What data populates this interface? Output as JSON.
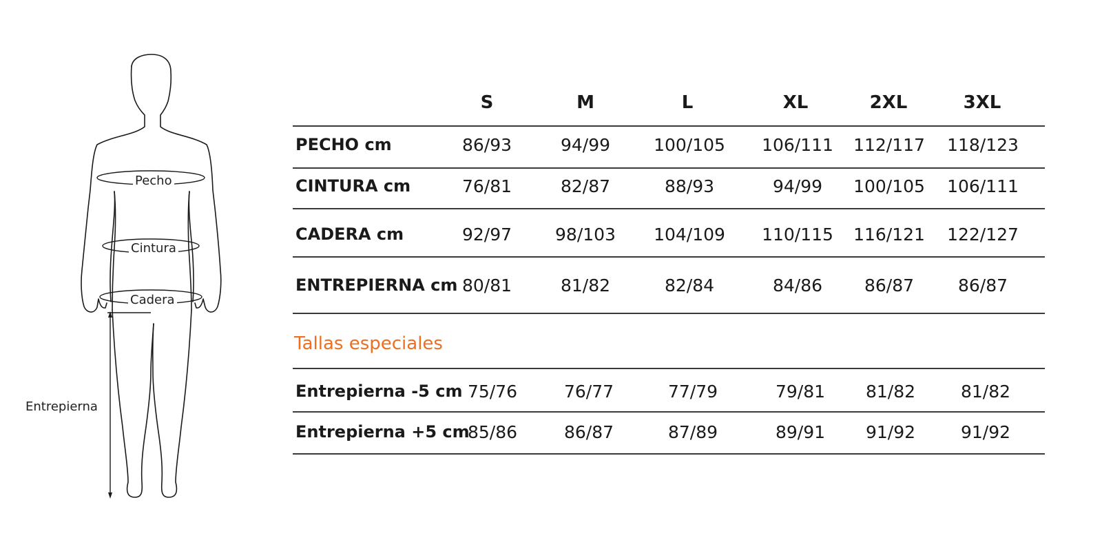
{
  "figure": {
    "labels": {
      "chest": "Pecho",
      "waist": "Cintura",
      "hip": "Cadera",
      "inseam": "Entrepierna"
    }
  },
  "table": {
    "sizes": [
      "S",
      "M",
      "L",
      "XL",
      "2XL",
      "3XL"
    ],
    "rows": [
      {
        "label": "PECHO cm",
        "values": [
          "86/93",
          "94/99",
          "100/105",
          "106/111",
          "112/117",
          "118/123"
        ]
      },
      {
        "label": "CINTURA cm",
        "values": [
          "76/81",
          "82/87",
          "88/93",
          "94/99",
          "100/105",
          "106/111"
        ]
      },
      {
        "label": "CADERA cm",
        "values": [
          "92/97",
          "98/103",
          "104/109",
          "110/115",
          "116/121",
          "122/127"
        ]
      },
      {
        "label": "ENTREPIERNA  cm",
        "values": [
          "80/81",
          "81/82",
          "82/84",
          "84/86",
          "86/87",
          "86/87"
        ]
      }
    ],
    "special_title": "Tallas especiales",
    "special_rows": [
      {
        "label": "Entrepierna -5 cm",
        "values": [
          "75/76",
          "76/77",
          "77/79",
          "79/81",
          "81/82",
          "81/82"
        ]
      },
      {
        "label": "Entrepierna +5 cm",
        "values": [
          "85/86",
          "86/87",
          "87/89",
          "89/91",
          "91/92",
          "91/92"
        ]
      }
    ]
  }
}
